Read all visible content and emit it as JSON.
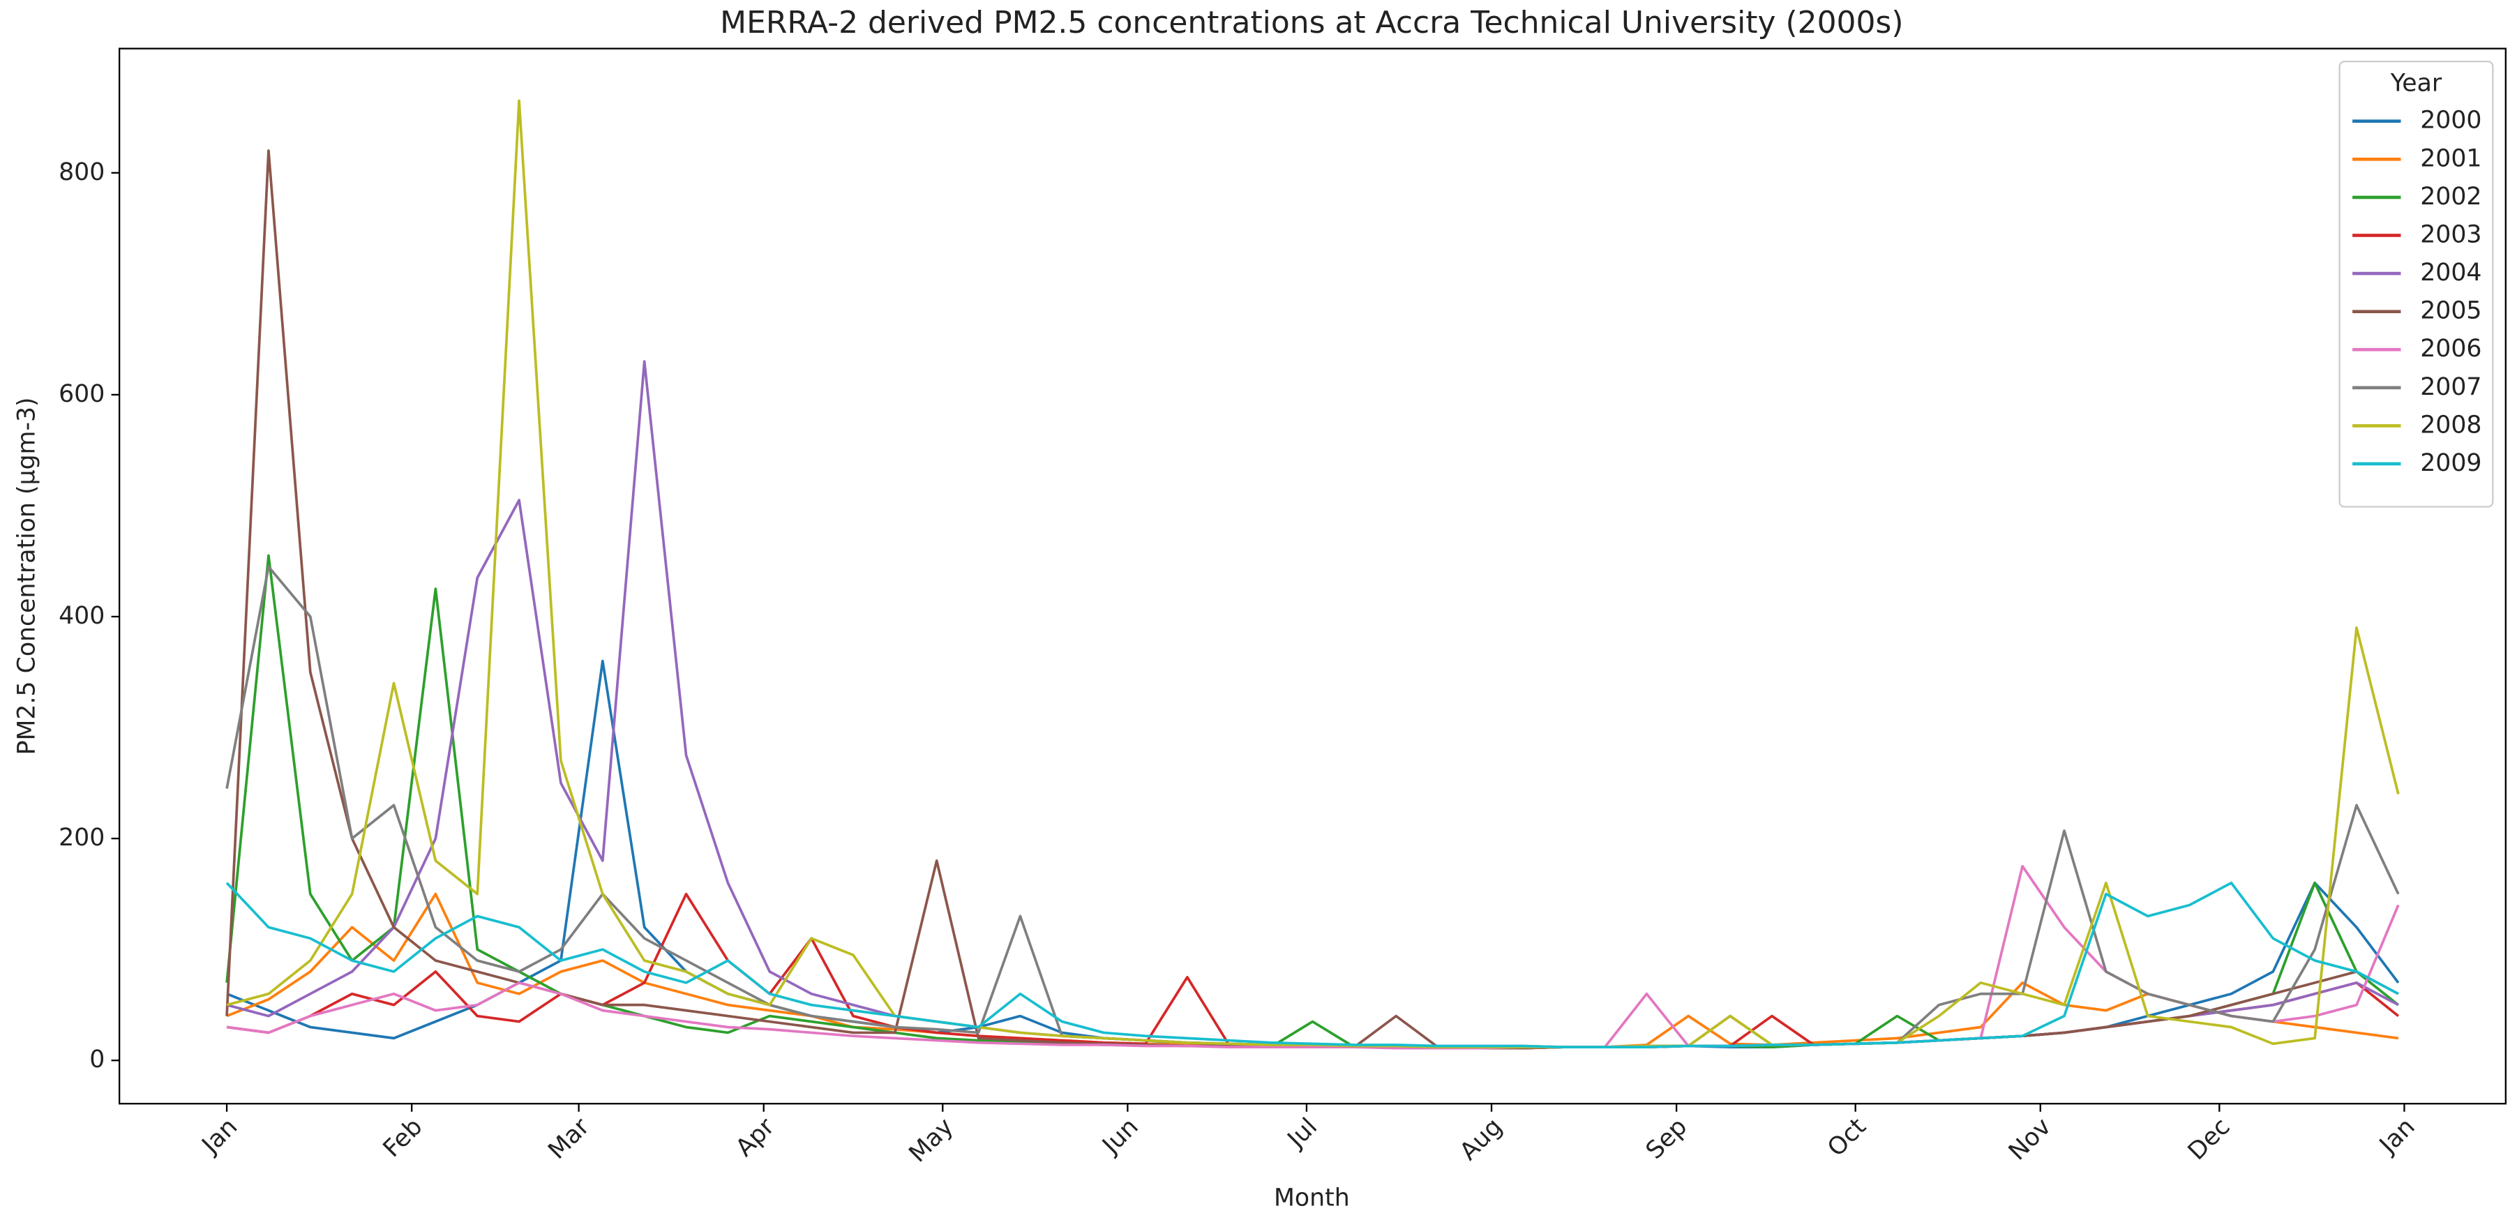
{
  "chart_data": {
    "type": "line",
    "title": "MERRA-2 derived PM2.5 concentrations at Accra Technical University (2000s)",
    "x_label": "Month",
    "y_label": "PM2.5 Concentration (µgm-3)",
    "legend_title": "Year",
    "legend_position": "upper right",
    "x": [
      0,
      7,
      14,
      21,
      28,
      35,
      42,
      49,
      56,
      63,
      70,
      77,
      84,
      91,
      98,
      105,
      112,
      119,
      126,
      133,
      140,
      147,
      154,
      161,
      168,
      175,
      182,
      189,
      196,
      203,
      210,
      217,
      224,
      231,
      238,
      245,
      252,
      259,
      266,
      273,
      280,
      287,
      294,
      301,
      308,
      315,
      322,
      329,
      336,
      343,
      350,
      357,
      364
    ],
    "xlim": [
      -18,
      382
    ],
    "xticks": [
      {
        "value": 0,
        "label": "Jan"
      },
      {
        "value": 31,
        "label": "Feb"
      },
      {
        "value": 59,
        "label": "Mar"
      },
      {
        "value": 90,
        "label": "Apr"
      },
      {
        "value": 120,
        "label": "May"
      },
      {
        "value": 151,
        "label": "Jun"
      },
      {
        "value": 181,
        "label": "Jul"
      },
      {
        "value": 212,
        "label": "Aug"
      },
      {
        "value": 243,
        "label": "Sep"
      },
      {
        "value": 273,
        "label": "Oct"
      },
      {
        "value": 304,
        "label": "Nov"
      },
      {
        "value": 334,
        "label": "Dec"
      },
      {
        "value": 365,
        "label": "Jan"
      }
    ],
    "ylim": [
      -39,
      912
    ],
    "yticks": [
      0,
      200,
      400,
      600,
      800
    ],
    "series": [
      {
        "name": "2000",
        "color": "#1f77b4",
        "values": [
          60,
          45,
          30,
          25,
          20,
          35,
          50,
          70,
          90,
          360,
          120,
          80,
          60,
          50,
          40,
          35,
          30,
          25,
          30,
          40,
          25,
          20,
          18,
          15,
          15,
          14,
          13,
          12,
          12,
          12,
          11,
          11,
          12,
          12,
          13,
          13,
          12,
          12,
          14,
          15,
          16,
          18,
          20,
          22,
          25,
          30,
          40,
          50,
          60,
          80,
          160,
          120,
          70
        ]
      },
      {
        "name": "2001",
        "color": "#ff7f0e",
        "values": [
          40,
          55,
          80,
          120,
          90,
          150,
          70,
          60,
          80,
          90,
          70,
          60,
          50,
          45,
          40,
          30,
          28,
          25,
          22,
          20,
          18,
          16,
          15,
          14,
          14,
          13,
          13,
          12,
          12,
          12,
          12,
          13,
          12,
          12,
          14,
          40,
          15,
          14,
          16,
          18,
          20,
          25,
          30,
          70,
          50,
          45,
          60,
          50,
          40,
          35,
          30,
          25,
          20
        ]
      },
      {
        "name": "2002",
        "color": "#2ca02c",
        "values": [
          70,
          455,
          150,
          90,
          120,
          425,
          100,
          80,
          60,
          50,
          40,
          30,
          25,
          40,
          35,
          30,
          25,
          20,
          18,
          16,
          15,
          14,
          14,
          13,
          13,
          12,
          35,
          12,
          12,
          12,
          11,
          11,
          12,
          12,
          12,
          13,
          13,
          12,
          14,
          15,
          40,
          18,
          20,
          22,
          25,
          30,
          35,
          40,
          50,
          60,
          160,
          80,
          50
        ]
      },
      {
        "name": "2003",
        "color": "#d62728",
        "values": [
          30,
          25,
          40,
          60,
          50,
          80,
          40,
          35,
          60,
          50,
          70,
          150,
          90,
          60,
          110,
          40,
          30,
          25,
          22,
          20,
          18,
          16,
          15,
          75,
          14,
          13,
          13,
          12,
          12,
          12,
          11,
          11,
          12,
          12,
          12,
          13,
          13,
          40,
          14,
          15,
          16,
          18,
          20,
          22,
          25,
          30,
          35,
          40,
          45,
          50,
          60,
          70,
          40
        ]
      },
      {
        "name": "2004",
        "color": "#9467bd",
        "values": [
          50,
          40,
          60,
          80,
          120,
          200,
          435,
          505,
          250,
          180,
          630,
          275,
          160,
          80,
          60,
          50,
          40,
          35,
          30,
          25,
          22,
          20,
          18,
          16,
          15,
          14,
          14,
          13,
          13,
          12,
          12,
          12,
          12,
          12,
          13,
          13,
          13,
          14,
          14,
          15,
          16,
          18,
          20,
          22,
          25,
          30,
          35,
          40,
          45,
          50,
          60,
          70,
          50
        ]
      },
      {
        "name": "2005",
        "color": "#8c564b",
        "values": [
          40,
          820,
          350,
          200,
          120,
          90,
          80,
          70,
          60,
          50,
          50,
          45,
          40,
          35,
          30,
          25,
          25,
          180,
          20,
          18,
          16,
          15,
          14,
          13,
          13,
          12,
          12,
          12,
          40,
          12,
          11,
          11,
          12,
          12,
          12,
          13,
          13,
          14,
          14,
          15,
          16,
          18,
          20,
          22,
          25,
          30,
          35,
          40,
          50,
          60,
          70,
          80,
          60
        ]
      },
      {
        "name": "2006",
        "color": "#e377c2",
        "values": [
          30,
          25,
          40,
          50,
          60,
          45,
          50,
          70,
          60,
          45,
          40,
          35,
          30,
          28,
          25,
          22,
          20,
          18,
          16,
          15,
          14,
          14,
          13,
          13,
          12,
          12,
          12,
          12,
          11,
          11,
          11,
          12,
          12,
          12,
          60,
          13,
          13,
          14,
          14,
          15,
          16,
          18,
          20,
          175,
          120,
          80,
          60,
          50,
          40,
          35,
          40,
          50,
          140
        ]
      },
      {
        "name": "2007",
        "color": "#7f7f7f",
        "values": [
          245,
          445,
          400,
          200,
          230,
          120,
          90,
          80,
          100,
          150,
          110,
          90,
          70,
          50,
          40,
          35,
          30,
          28,
          25,
          130,
          22,
          20,
          18,
          16,
          15,
          14,
          14,
          13,
          13,
          12,
          12,
          12,
          12,
          12,
          13,
          13,
          40,
          14,
          14,
          15,
          16,
          50,
          60,
          60,
          207,
          80,
          60,
          50,
          40,
          35,
          100,
          230,
          150
        ]
      },
      {
        "name": "2008",
        "color": "#bcbd22",
        "values": [
          50,
          60,
          90,
          150,
          340,
          180,
          150,
          865,
          270,
          150,
          90,
          80,
          60,
          50,
          110,
          95,
          40,
          35,
          30,
          25,
          22,
          20,
          18,
          16,
          15,
          14,
          14,
          13,
          13,
          12,
          12,
          12,
          12,
          12,
          13,
          13,
          40,
          14,
          14,
          15,
          16,
          40,
          70,
          60,
          50,
          160,
          40,
          35,
          30,
          15,
          20,
          390,
          240
        ]
      },
      {
        "name": "2009",
        "color": "#17becf",
        "values": [
          160,
          120,
          110,
          90,
          80,
          110,
          130,
          120,
          90,
          100,
          80,
          70,
          90,
          60,
          50,
          45,
          40,
          35,
          30,
          60,
          35,
          25,
          22,
          20,
          18,
          16,
          15,
          14,
          14,
          13,
          13,
          13,
          12,
          12,
          12,
          13,
          13,
          14,
          14,
          15,
          16,
          18,
          20,
          22,
          40,
          150,
          130,
          140,
          160,
          110,
          90,
          80,
          60
        ]
      }
    ]
  }
}
